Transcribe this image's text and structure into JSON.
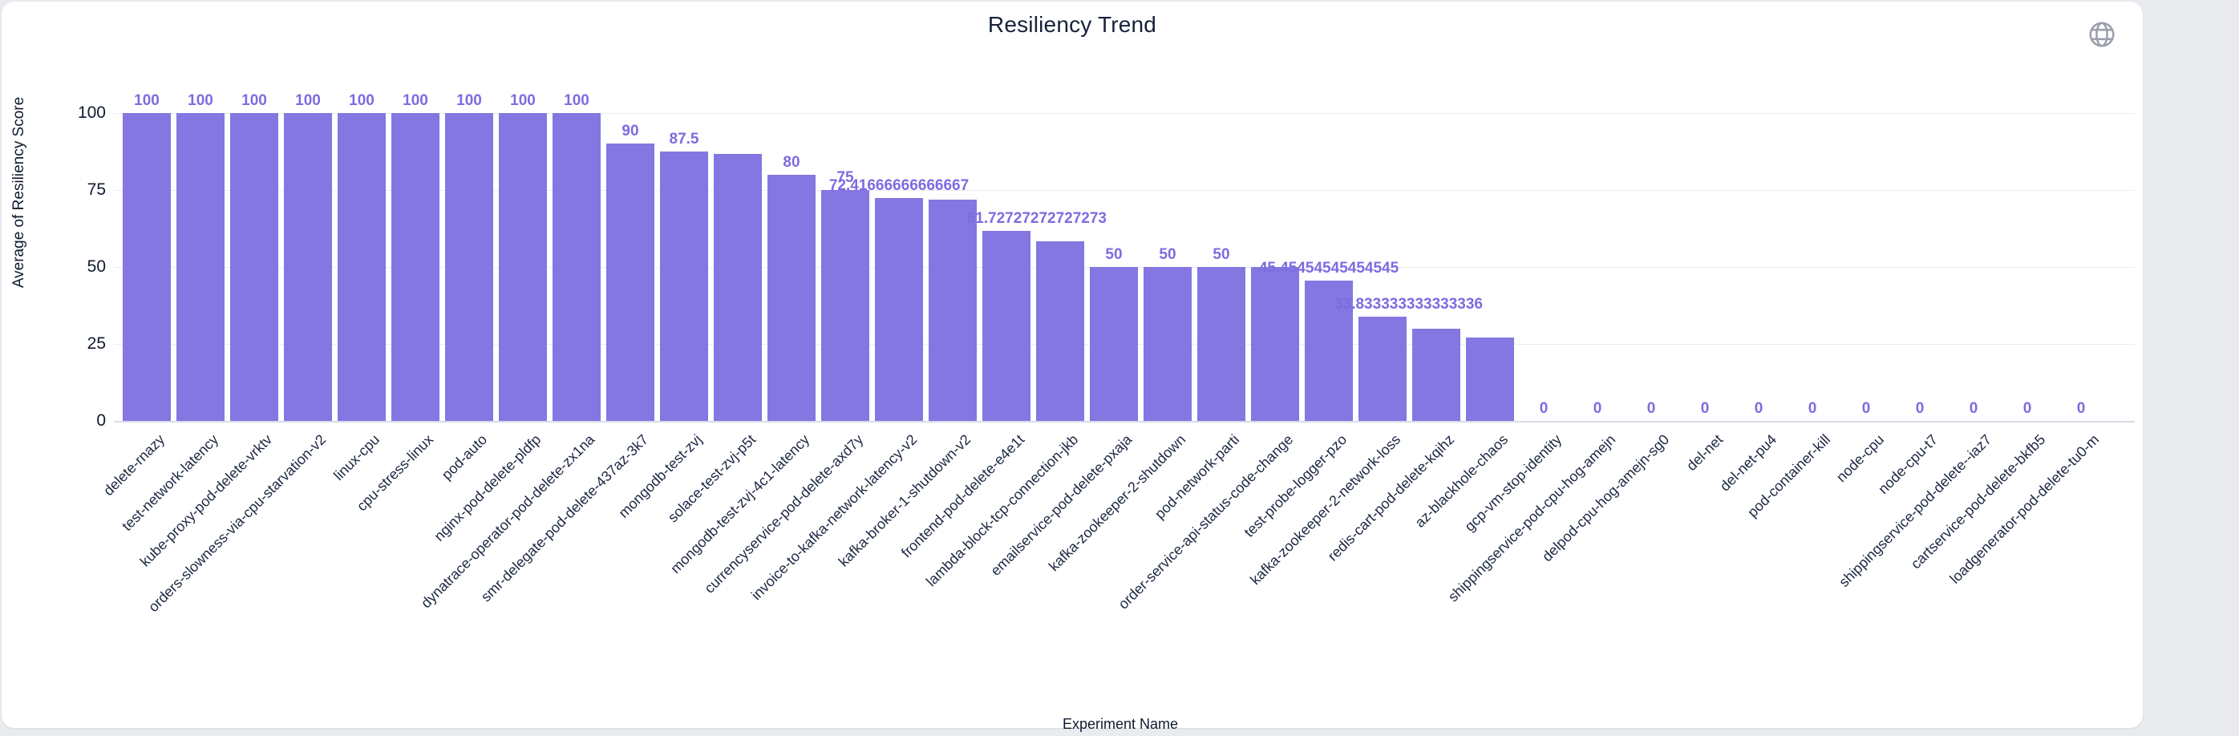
{
  "page": {
    "background": "#e9ebef",
    "card_background": "#ffffff"
  },
  "header": {
    "title": "Resiliency Trend",
    "globe_icon": "globe"
  },
  "y_axis": {
    "name": "Average of Resiliency Score",
    "tick_values": [
      100,
      75,
      50,
      25,
      0
    ],
    "tick_labels": [
      "100",
      "75",
      "50",
      "25",
      "0"
    ]
  },
  "x_axis": {
    "name": "Experiment Name"
  },
  "colors": {
    "bar": "#8477e1",
    "value_label": "#7c6ce0",
    "title_text": "#17213a",
    "axis_text": "#0f1a2e",
    "x_label_text": "#1c2742",
    "gridline": "#ebecf1",
    "axis_line": "#d8dce6",
    "globe_icon": "#9aa0ad"
  },
  "chart_data": {
    "type": "bar",
    "title": "Resiliency Trend",
    "xlabel": "Experiment Name",
    "ylabel": "Average of Resiliency Score",
    "ylim": [
      0,
      100
    ],
    "y_ticks": [
      0,
      25,
      50,
      75,
      100
    ],
    "grid": true,
    "legend_position": "none",
    "bar_color": "#8477e1",
    "categories": [
      "delete-rnazy",
      "test-network-latency",
      "kube-proxy-pod-delete-vrktv",
      "orders-slowness-via-cpu-starvation-v2",
      "linux-cpu",
      "cpu-stress-linux",
      "pod-auto",
      "nginx-pod-delete-pldfp",
      "dynatrace-operator-pod-delete-zx1na",
      "smr-delegate-pod-delete-437az-3k7",
      "mongodb-test-zvj",
      "solace-test-zvj-p5t",
      "mongodb-test-zvj-4c1-latency",
      "currencyservice-pod-delete-axd7y",
      "invoice-to-kafka-network-latency-v2",
      "kafka-broker-1-shutdown-v2",
      "frontend-pod-delete-e4e1t",
      "lambda-block-tcp-connection-jkb",
      "emailservice-pod-delete-pxaja",
      "kafka-zookeeper-2-shutdown",
      "pod-network-parti",
      "order-service-api-status-code-change",
      "test-probe-logger-pzo",
      "kafka-zookeeper-2-network-loss",
      "redis-cart-pod-delete-kqihz",
      "az-blackhole-chaos",
      "gcp-vm-stop-identity",
      "shippingservice-pod-cpu-hog-amejn",
      "delpod-cpu-hog-amejn-sg0",
      "del-net",
      "del-net-pu4",
      "pod-container-kill",
      "node-cpu",
      "node-cpu-t7",
      "shippingservice-pod-delete--iaz7",
      "cartservice-pod-delete-bkfb5",
      "loadgenerator-pod-delete-tu0-m"
    ],
    "values": [
      100,
      100,
      100,
      100,
      100,
      100,
      100,
      100,
      100,
      90,
      87.5,
      86.66666666666667,
      80,
      75,
      72.41666666666667,
      72,
      61.72727272727273,
      58.333333333333336,
      50,
      50,
      50,
      50,
      45.45454545454545,
      33.833333333333336,
      30,
      27,
      0,
      0,
      0,
      0,
      0,
      0,
      0,
      0,
      0,
      0,
      0
    ],
    "value_labels": [
      "100",
      "100",
      "100",
      "100",
      "100",
      "100",
      "100",
      "100",
      "100",
      "90",
      "87.5",
      null,
      "80",
      "75",
      "72.41666666666667",
      null,
      "61.72727272727273",
      null,
      "50",
      "50",
      "50",
      null,
      "45.45454545454545",
      "33.833333333333336",
      null,
      null,
      "0",
      "0",
      "0",
      "0",
      "0",
      "0",
      "0",
      "0",
      "0",
      "0",
      "0"
    ],
    "clipped_label_indexes": [
      16,
      23
    ]
  }
}
